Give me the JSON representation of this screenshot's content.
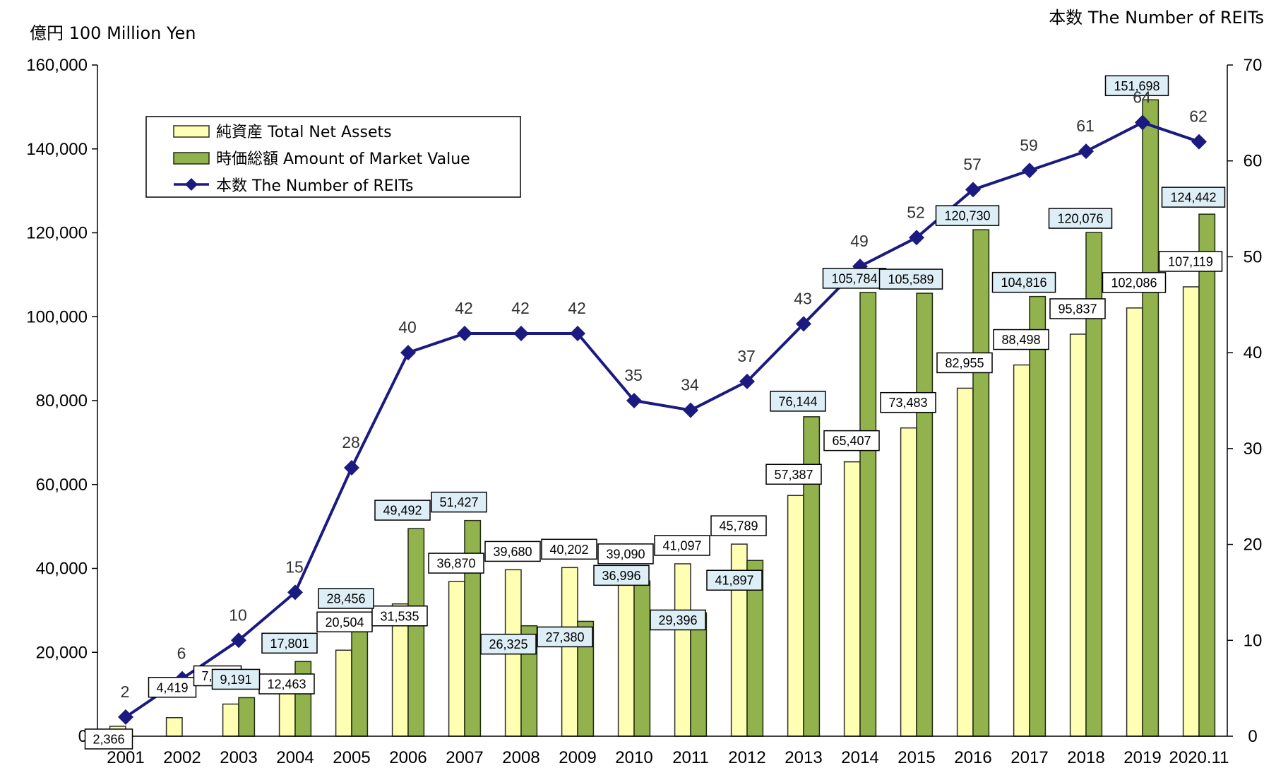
{
  "colors": {
    "net_assets_fill": "#FFFFB3",
    "net_assets_stroke": "#2B2B2B",
    "market_value_fill": "#92B24E",
    "market_value_stroke": "#1F2A0E",
    "reit_line": "#1A1A80",
    "market_label_bg": "#DDEEF6",
    "net_label_bg": "#FFFFFF"
  },
  "chart_data": {
    "type": "bar",
    "combo": "bar + line on secondary axis",
    "categories": [
      "2001",
      "2002",
      "2003",
      "2004",
      "2005",
      "2006",
      "2007",
      "2008",
      "2009",
      "2010",
      "2011",
      "2012",
      "2013",
      "2014",
      "2015",
      "2016",
      "2017",
      "2018",
      "2019",
      "2020.11"
    ],
    "series": [
      {
        "name": "純資産 Total Net Assets",
        "type": "bar",
        "axis": "left",
        "values": [
          2366,
          4419,
          7661,
          12463,
          20504,
          31535,
          36870,
          39680,
          40202,
          39090,
          41097,
          45789,
          57387,
          65407,
          73483,
          82955,
          88498,
          95837,
          102086,
          107119
        ]
      },
      {
        "name": "時価総額 Amount of Market Value",
        "type": "bar",
        "axis": "left",
        "values": [
          null,
          null,
          9191,
          17801,
          28456,
          49492,
          51427,
          26325,
          27380,
          36996,
          29396,
          41897,
          76144,
          105784,
          105589,
          120730,
          104816,
          120076,
          151698,
          124442
        ]
      },
      {
        "name": "本数 The Number of REITs",
        "type": "line",
        "marker": "diamond",
        "axis": "right",
        "values": [
          2,
          6,
          10,
          15,
          28,
          40,
          42,
          42,
          42,
          35,
          34,
          37,
          43,
          49,
          52,
          57,
          59,
          61,
          64,
          62
        ]
      }
    ],
    "y_left": {
      "label": "億円 100 Million Yen",
      "min": 0,
      "max": 160000,
      "ticks": [
        "0",
        "20,000",
        "40,000",
        "60,000",
        "80,000",
        "100,000",
        "120,000",
        "140,000",
        "160,000"
      ]
    },
    "y_right": {
      "label": "本数 The Number of REITs",
      "min": 0,
      "max": 70,
      "ticks": [
        "0",
        "10",
        "20",
        "30",
        "40",
        "50",
        "60",
        "70"
      ]
    },
    "data_labels": {
      "net_assets": [
        "2,366",
        "4,419",
        "7,661",
        "12,463",
        "20,504",
        "31,535",
        "36,870",
        "39,680",
        "40,202",
        "39,090",
        "41,097",
        "45,789",
        "57,387",
        "65,407",
        "73,483",
        "82,955",
        "88,498",
        "95,837",
        "102,086",
        "107,119"
      ],
      "market_value": [
        "",
        "",
        "9,191",
        "17,801",
        "28,456",
        "49,492",
        "51,427",
        "26,325",
        "27,380",
        "36,996",
        "29,396",
        "41,897",
        "76,144",
        "105,784",
        "105,589",
        "120,730",
        "104,816",
        "120,076",
        "151,698",
        "124,442"
      ],
      "reits": [
        "2",
        "6",
        "10",
        "15",
        "28",
        "40",
        "42",
        "42",
        "42",
        "35",
        "34",
        "37",
        "43",
        "49",
        "52",
        "57",
        "59",
        "61",
        "64",
        "62"
      ]
    },
    "grid": false,
    "legend": "top-left inside plot"
  }
}
